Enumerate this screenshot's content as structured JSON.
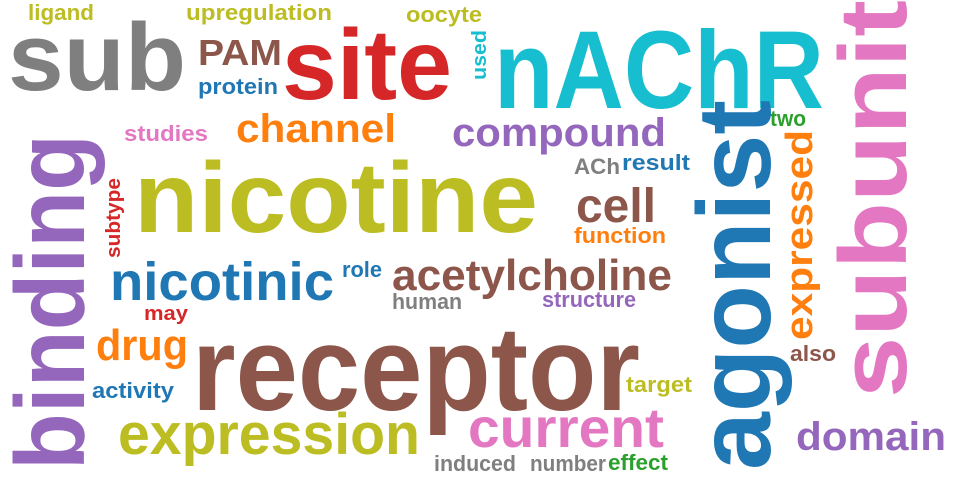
{
  "palette": {
    "olive": "#bcbd22",
    "gray": "#7f7f7f",
    "red": "#d62728",
    "brown": "#8c564b",
    "blue": "#1f77b4",
    "orange": "#ff7f0e",
    "cyan": "#17becf",
    "purple": "#9467bd",
    "pink": "#e377c2",
    "green": "#2ca02c"
  },
  "words": [
    {
      "id": "ligand",
      "text": "ligand",
      "color": "#bcbd22"
    },
    {
      "id": "upregulation",
      "text": "upregulation",
      "color": "#bcbd22"
    },
    {
      "id": "oocyte",
      "text": "oocyte",
      "color": "#bcbd22"
    },
    {
      "id": "sub",
      "text": "sub",
      "color": "#7f7f7f"
    },
    {
      "id": "pam",
      "text": "PAM",
      "color": "#8c564b"
    },
    {
      "id": "site",
      "text": "site",
      "color": "#d62728"
    },
    {
      "id": "used",
      "text": "used",
      "color": "#17becf"
    },
    {
      "id": "nachr",
      "text": "nAChR",
      "color": "#17becf"
    },
    {
      "id": "subunit",
      "text": "subunit",
      "color": "#e377c2"
    },
    {
      "id": "protein",
      "text": "protein",
      "color": "#1f77b4"
    },
    {
      "id": "studies",
      "text": "studies",
      "color": "#e377c2"
    },
    {
      "id": "channel",
      "text": "channel",
      "color": "#ff7f0e"
    },
    {
      "id": "compound",
      "text": "compound",
      "color": "#9467bd"
    },
    {
      "id": "two",
      "text": "two",
      "color": "#2ca02c"
    },
    {
      "id": "agonist",
      "text": "agonist",
      "color": "#1f77b4"
    },
    {
      "id": "expressed",
      "text": "expressed",
      "color": "#ff7f0e"
    },
    {
      "id": "ach",
      "text": "ACh",
      "color": "#7f7f7f"
    },
    {
      "id": "result",
      "text": "result",
      "color": "#1f77b4"
    },
    {
      "id": "binding",
      "text": "binding",
      "color": "#9467bd"
    },
    {
      "id": "subtype",
      "text": "subtype",
      "color": "#d62728"
    },
    {
      "id": "nicotine",
      "text": "nicotine",
      "color": "#bcbd22"
    },
    {
      "id": "cell",
      "text": "cell",
      "color": "#8c564b"
    },
    {
      "id": "function",
      "text": "function",
      "color": "#ff7f0e"
    },
    {
      "id": "nicotinic",
      "text": "nicotinic",
      "color": "#1f77b4"
    },
    {
      "id": "role",
      "text": "role",
      "color": "#1f77b4"
    },
    {
      "id": "acetylcholine",
      "text": "acetylcholine",
      "color": "#8c564b"
    },
    {
      "id": "human",
      "text": "human",
      "color": "#7f7f7f"
    },
    {
      "id": "structure",
      "text": "structure",
      "color": "#9467bd"
    },
    {
      "id": "may",
      "text": "may",
      "color": "#d62728"
    },
    {
      "id": "drug",
      "text": "drug",
      "color": "#ff7f0e"
    },
    {
      "id": "receptor",
      "text": "receptor",
      "color": "#8c564b"
    },
    {
      "id": "also",
      "text": "also",
      "color": "#8c564b"
    },
    {
      "id": "activity",
      "text": "activity",
      "color": "#1f77b4"
    },
    {
      "id": "target",
      "text": "target",
      "color": "#bcbd22"
    },
    {
      "id": "expression",
      "text": "expression",
      "color": "#bcbd22"
    },
    {
      "id": "current",
      "text": "current",
      "color": "#e377c2"
    },
    {
      "id": "domain",
      "text": "domain",
      "color": "#9467bd"
    },
    {
      "id": "induced",
      "text": "induced",
      "color": "#7f7f7f"
    },
    {
      "id": "number",
      "text": "number",
      "color": "#7f7f7f"
    },
    {
      "id": "effect",
      "text": "effect",
      "color": "#2ca02c"
    }
  ]
}
